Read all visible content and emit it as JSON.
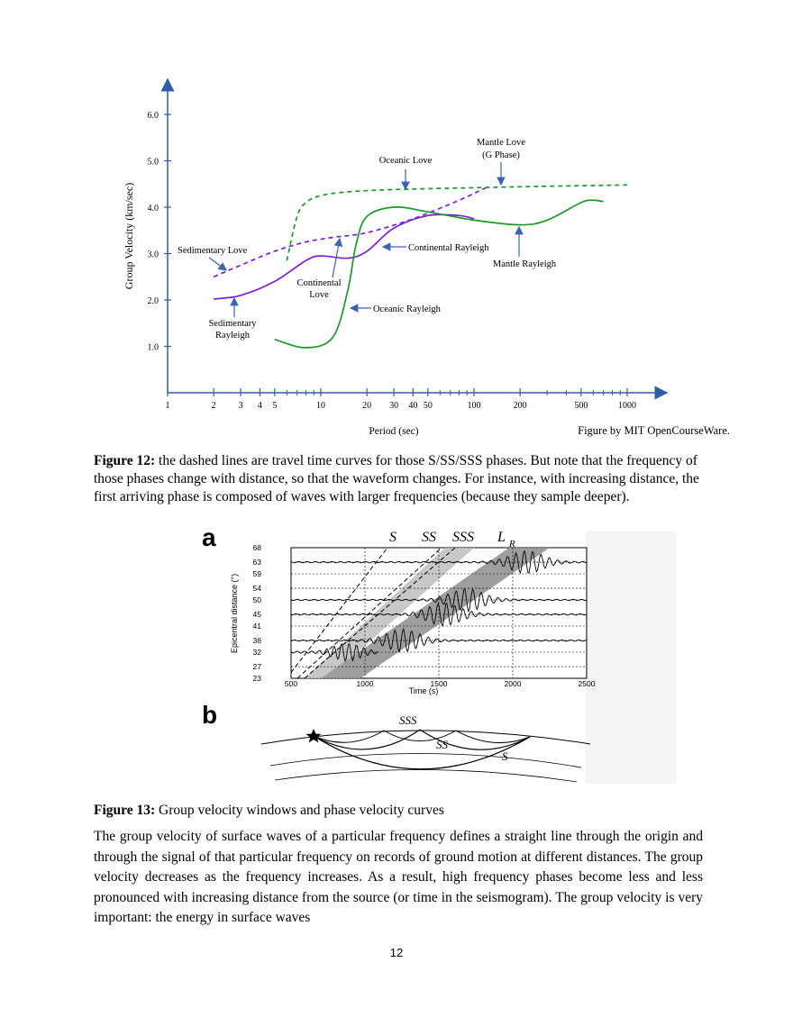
{
  "figure12": {
    "ylabel": "Group Velocity (km/sec)",
    "xlabel": "Period (sec)",
    "credit": "Figure by MIT OpenCourseWare.",
    "y_ticks": [
      "1.0",
      "2.0",
      "3.0",
      "4.0",
      "5.0",
      "6.0"
    ],
    "x_ticks": [
      "1",
      "2",
      "3",
      "4",
      "5",
      "10",
      "20",
      "30",
      "40",
      "50",
      "100",
      "200",
      "500",
      "1000"
    ],
    "labels": {
      "oceanic_love": "Oceanic Love",
      "mantle_love_1": "Mantle Love",
      "mantle_love_2": "(G Phase)",
      "sedimentary_love": "Sedimentary Love",
      "continental_rayleigh": "Continental Rayleigh",
      "mantle_rayleigh": "Mantle Rayleigh",
      "continental_love_1": "Continental",
      "continental_love_2": "Love",
      "oceanic_rayleigh": "Oceanic Rayleigh",
      "sedimentary_rayleigh_1": "Sedimentary",
      "sedimentary_rayleigh_2": "Rayleigh"
    },
    "colors": {
      "love": "#7b1fd8",
      "rayleigh": "#1a9a2a",
      "arrow": "#3a64b0"
    },
    "caption_label": "Figure 12:",
    "caption_text": " the dashed lines are travel time curves for those S/SS/SSS phases. But note that the frequency of those phases change with distance, so that the waveform changes. For instance, with increasing distance, the first arriving phase is composed of waves with larger frequencies (because they sample deeper)."
  },
  "chart_data": {
    "type": "line",
    "title": "",
    "xlabel": "Period (sec)",
    "ylabel": "Group Velocity (km/sec)",
    "x_scale": "log",
    "xlim": [
      1,
      1500
    ],
    "ylim": [
      0,
      6.5
    ],
    "series": [
      {
        "name": "Sedimentary Love",
        "style": "dashed",
        "color": "#7b1fd8",
        "x": [
          2,
          3,
          5,
          8,
          12,
          20,
          40,
          80,
          120
        ],
        "y": [
          2.5,
          2.75,
          3.05,
          3.25,
          3.35,
          3.45,
          3.75,
          4.15,
          4.42
        ]
      },
      {
        "name": "Oceanic Love",
        "style": "dashed",
        "color": "#1a9a2a",
        "x": [
          6,
          7,
          8,
          10,
          15,
          30,
          100,
          300,
          1000
        ],
        "y": [
          2.85,
          3.8,
          4.1,
          4.25,
          4.33,
          4.38,
          4.42,
          4.45,
          4.48
        ]
      },
      {
        "name": "Continental Rayleigh",
        "style": "solid",
        "color": "#7b1fd8",
        "x": [
          2,
          3,
          5,
          8,
          10,
          15,
          20,
          30,
          50,
          80,
          100
        ],
        "y": [
          2.02,
          2.1,
          2.4,
          2.85,
          2.95,
          2.9,
          3.05,
          3.55,
          3.82,
          3.82,
          3.75
        ]
      },
      {
        "name": "Oceanic Rayleigh",
        "style": "solid",
        "color": "#1a9a2a",
        "x": [
          5,
          8,
          12,
          15,
          17,
          20,
          30,
          50,
          100,
          200,
          300,
          500,
          600,
          700
        ],
        "y": [
          1.15,
          0.97,
          1.2,
          2.2,
          3.2,
          3.8,
          4.0,
          3.9,
          3.72,
          3.62,
          3.72,
          4.1,
          4.15,
          4.12
        ]
      }
    ]
  },
  "figure13": {
    "panel_a": "a",
    "panel_b": "b",
    "phases": [
      "S",
      "SS",
      "SSS"
    ],
    "phase_lr": "L",
    "phase_lr_sub": "R",
    "ylabel": "Epicentral distance (°)",
    "xlabel": "Time (s)",
    "y_ticks": [
      "68",
      "63",
      "59",
      "54",
      "50",
      "45",
      "41",
      "36",
      "32",
      "27",
      "23"
    ],
    "x_ticks": [
      "500",
      "1000",
      "1500",
      "2000",
      "2500"
    ],
    "ray_labels": [
      "SSS",
      "SS",
      "S"
    ],
    "caption_label": "Figure 13:",
    "caption_text": " Group velocity windows and phase velocity curves"
  },
  "body_text": "The group velocity of surface waves of a particular frequency defines a straight line through the origin and through the signal of that particular frequency on records of ground motion at different distances. The group velocity decreases as the frequency increases. As a result, high frequency phases become less and less pronounced with increasing distance from the source (or time in the seismogram). The group velocity is very important: the energy in surface waves",
  "page_number": "12"
}
